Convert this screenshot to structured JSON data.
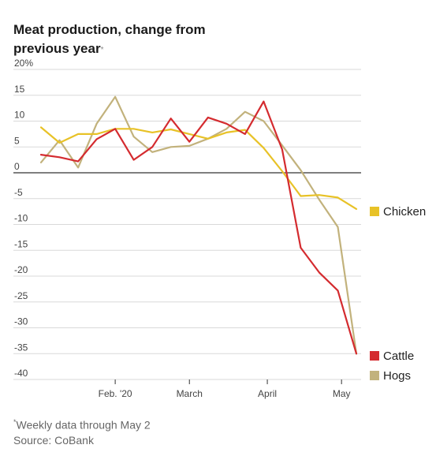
{
  "chart_data": {
    "type": "line",
    "title": "Meat production, change from previous year",
    "title_mark": "*",
    "y_ticks": [
      "20%",
      "15",
      "10",
      "5",
      "0",
      "-5",
      "-10",
      "-15",
      "-20",
      "-25",
      "-30",
      "-35",
      "-40"
    ],
    "ylim": [
      -40,
      20
    ],
    "x_ticks": [
      {
        "label": "Feb. '20",
        "week": 4
      },
      {
        "label": "March",
        "week": 8
      },
      {
        "label": "April",
        "week": 12.2
      },
      {
        "label": "May",
        "week": 16.2
      }
    ],
    "series": [
      {
        "name": "Chicken",
        "color": "#e8c227",
        "values": [
          8.8,
          5.8,
          7.5,
          7.5,
          8.5,
          8.5,
          7.8,
          8.4,
          7.5,
          6.6,
          7.8,
          8.3,
          4.8,
          0.3,
          -4.5,
          -4.3,
          -4.8,
          -7.0
        ]
      },
      {
        "name": "Cattle",
        "color": "#d42b2f",
        "values": [
          3.5,
          3.0,
          2.2,
          6.5,
          8.5,
          2.5,
          5.0,
          10.5,
          6.0,
          10.7,
          9.5,
          7.5,
          13.8,
          4.5,
          -14.5,
          -19.3,
          -22.8,
          -35.0
        ]
      },
      {
        "name": "Hogs",
        "color": "#c2b27c",
        "values": [
          2.0,
          6.3,
          1.0,
          9.5,
          14.7,
          7.0,
          4.0,
          5.0,
          5.2,
          6.6,
          8.5,
          11.8,
          10.0,
          5.3,
          0.5,
          -5.2,
          -10.5,
          -35.0
        ]
      }
    ]
  },
  "footer": {
    "mark": "*",
    "note": "Weekly data through May 2",
    "source": "Source: CoBank"
  }
}
